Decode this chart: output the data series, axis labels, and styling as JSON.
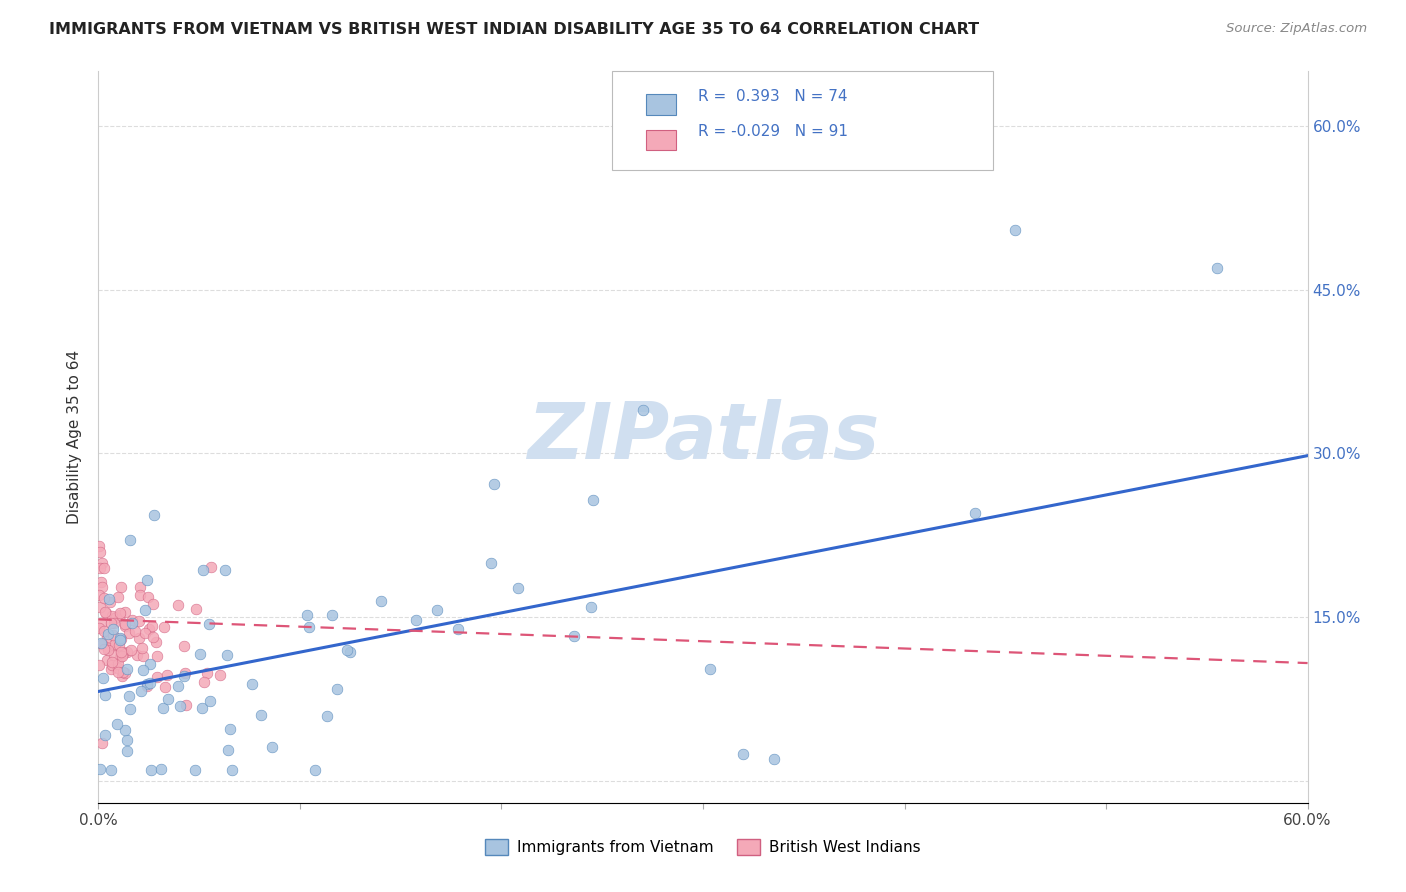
{
  "title": "IMMIGRANTS FROM VIETNAM VS BRITISH WEST INDIAN DISABILITY AGE 35 TO 64 CORRELATION CHART",
  "source": "Source: ZipAtlas.com",
  "ylabel": "Disability Age 35 to 64",
  "xlim": [
    0.0,
    0.6
  ],
  "ylim": [
    -0.02,
    0.65
  ],
  "yticks": [
    0.0,
    0.15,
    0.3,
    0.45,
    0.6
  ],
  "vietnam_color": "#a8c4e0",
  "vietnam_edge": "#5588bb",
  "bwi_color": "#f4a9b8",
  "bwi_edge": "#d06080",
  "vietnam_R": 0.393,
  "vietnam_N": 74,
  "bwi_R": -0.029,
  "bwi_N": 91,
  "line_vietnam_color": "#3366cc",
  "line_bwi_color": "#dd5577",
  "background_color": "#ffffff",
  "grid_color": "#dddddd",
  "blue_text": "#4472c4",
  "title_color": "#222222",
  "source_color": "#888888",
  "watermark_color": "#d0dff0",
  "vietnam_line_start_y": 0.082,
  "vietnam_line_end_y": 0.298,
  "bwi_line_start_y": 0.148,
  "bwi_line_end_y": 0.108
}
